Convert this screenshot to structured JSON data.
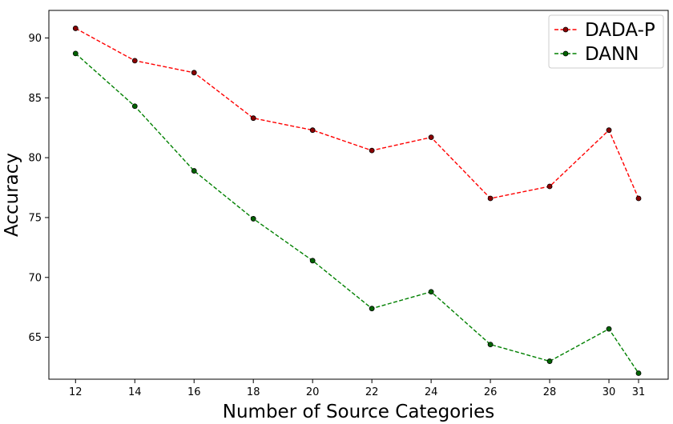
{
  "chart_data": {
    "type": "line",
    "title": "",
    "xlabel": "Number of Source Categories",
    "ylabel": "Accuracy",
    "x": [
      12,
      14,
      16,
      18,
      20,
      22,
      24,
      26,
      28,
      30,
      31
    ],
    "xticks": [
      "12",
      "14",
      "16",
      "18",
      "20",
      "22",
      "24",
      "26",
      "28",
      "30",
      "31"
    ],
    "xlim": [
      11.1,
      32.0
    ],
    "ylim": [
      61.5,
      92.3
    ],
    "yticks": [
      65,
      70,
      75,
      80,
      85,
      90
    ],
    "grid": false,
    "legend_position": "top-right",
    "series": [
      {
        "name": "DADA-P",
        "color": "#ff0000",
        "marker_face": "#8b0000",
        "values": [
          90.8,
          88.1,
          87.1,
          83.3,
          82.3,
          80.6,
          81.7,
          76.6,
          77.6,
          82.3,
          76.6
        ]
      },
      {
        "name": "DANN",
        "color": "#008000",
        "marker_face": "#006400",
        "values": [
          88.7,
          84.3,
          78.9,
          74.9,
          71.4,
          67.4,
          68.8,
          64.4,
          63.0,
          65.7,
          62.0
        ]
      }
    ]
  }
}
